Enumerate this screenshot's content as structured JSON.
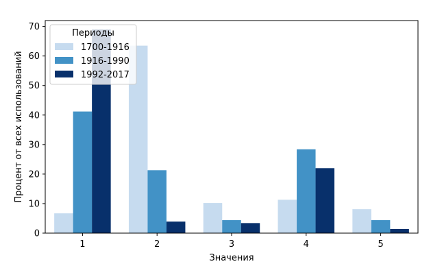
{
  "chart_data": {
    "type": "bar",
    "title": "",
    "xlabel": "Значения",
    "ylabel": "Процент от всех использований",
    "categories": [
      "1",
      "2",
      "3",
      "4",
      "5"
    ],
    "ylim": [
      0,
      72
    ],
    "yticks": [
      0,
      10,
      20,
      30,
      40,
      50,
      60,
      70
    ],
    "grid": false,
    "legend": {
      "title": "Периоды",
      "placement": "top-left"
    },
    "series": [
      {
        "name": "1700-1916",
        "color": "#c6dbef",
        "values": [
          6.7,
          63.5,
          10.2,
          11.3,
          8.1
        ]
      },
      {
        "name": "1916-1990",
        "color": "#4292c6",
        "values": [
          41.2,
          21.3,
          4.4,
          28.4,
          4.4
        ]
      },
      {
        "name": "1992-2017",
        "color": "#08306b",
        "values": [
          69.0,
          3.9,
          3.4,
          22.0,
          1.4
        ]
      }
    ]
  }
}
